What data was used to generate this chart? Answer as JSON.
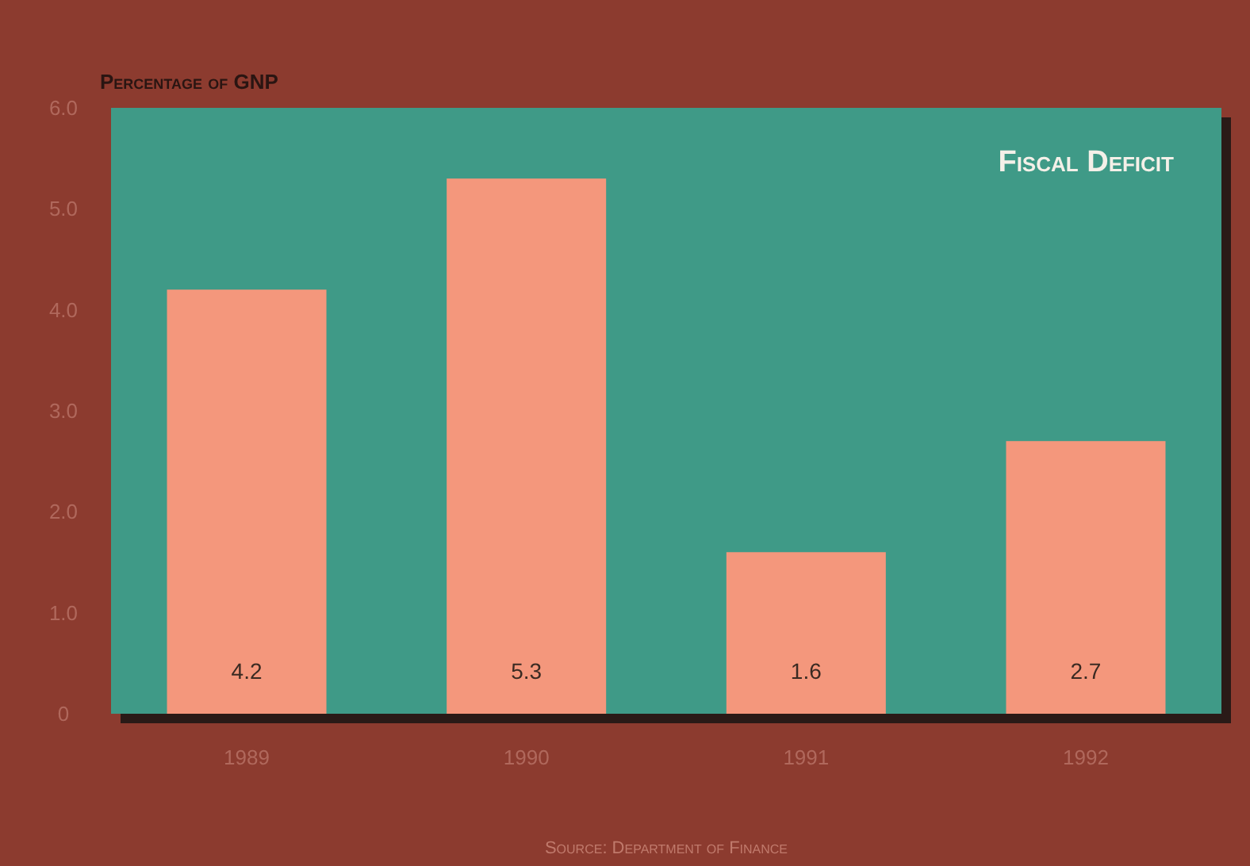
{
  "chart_data": {
    "type": "bar",
    "title": "Fiscal Deficit",
    "ylabel": "Percentage of GNP",
    "annotations": [
      "Source: Department of Finance"
    ],
    "categories": [
      "1989",
      "1990",
      "1991",
      "1992"
    ],
    "values": [
      4.2,
      5.3,
      1.6,
      2.7
    ],
    "color": "#f4977c",
    "data_labels": true,
    "ylim": [
      0,
      6
    ],
    "yticks": [
      {
        "value": 0,
        "label": "0"
      },
      {
        "value": 1,
        "label": "1.0"
      },
      {
        "value": 2,
        "label": "2.0"
      },
      {
        "value": 3,
        "label": "3.0"
      },
      {
        "value": 4,
        "label": "4.0"
      },
      {
        "value": 5,
        "label": "5.0"
      },
      {
        "value": 6,
        "label": "6.0"
      }
    ],
    "grid": false
  }
}
